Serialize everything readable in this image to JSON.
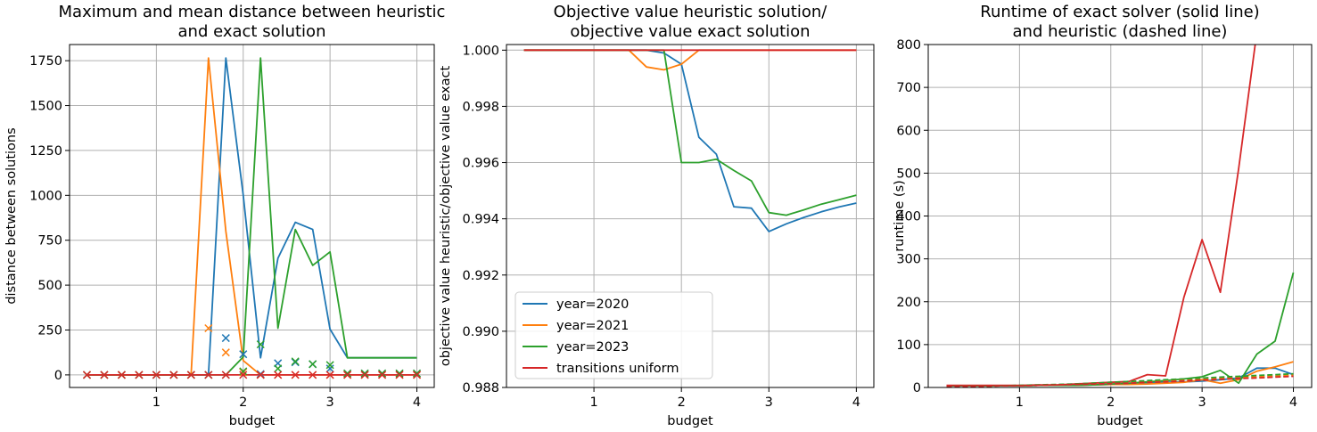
{
  "colors": {
    "year=2020": "#1f77b4",
    "year=2021": "#ff7f0e",
    "year=2023": "#2ca02c",
    "transitions uniform": "#d62728"
  },
  "chart_data": [
    {
      "type": "line",
      "title": [
        "Maximum and mean distance between heuristic",
        "and exact solution"
      ],
      "xlabel": "budget",
      "ylabel": "distance between solutions",
      "xlim": [
        0.0,
        4.2
      ],
      "ylim": [
        -70,
        1840
      ],
      "xticks": [
        1,
        2,
        3,
        4
      ],
      "yticks": [
        0,
        250,
        500,
        750,
        1000,
        1250,
        1500,
        1750
      ],
      "grid": true,
      "x": [
        0.2,
        0.4,
        0.6,
        0.8,
        1.0,
        1.2,
        1.4,
        1.6,
        1.8,
        2.0,
        2.2,
        2.4,
        2.6,
        2.8,
        3.0,
        3.2,
        3.4,
        3.6,
        3.8,
        4.0
      ],
      "series": [
        {
          "name": "year=2020",
          "style": "line",
          "values": [
            0,
            0,
            0,
            0,
            0,
            0,
            0,
            0,
            1765,
            1000,
            95,
            650,
            850,
            810,
            255,
            95,
            95,
            95,
            95,
            95
          ]
        },
        {
          "name": "year=2021",
          "style": "line",
          "values": [
            0,
            0,
            0,
            0,
            0,
            0,
            0,
            1765,
            800,
            80,
            0,
            0,
            0,
            0,
            0,
            0,
            0,
            0,
            0,
            0
          ]
        },
        {
          "name": "year=2023",
          "style": "line",
          "values": [
            0,
            0,
            0,
            0,
            0,
            0,
            0,
            0,
            0,
            100,
            1765,
            260,
            810,
            610,
            685,
            95,
            95,
            95,
            95,
            95
          ]
        },
        {
          "name": "transitions uniform",
          "style": "line",
          "values": [
            0,
            0,
            0,
            0,
            0,
            0,
            0,
            0,
            0,
            0,
            0,
            0,
            0,
            0,
            0,
            0,
            0,
            0,
            0,
            0
          ]
        },
        {
          "name": "year=2020",
          "style": "marker",
          "values": [
            0,
            0,
            0,
            0,
            0,
            0,
            0,
            0,
            205,
            115,
            5,
            65,
            70,
            60,
            35,
            8,
            8,
            8,
            8,
            8
          ]
        },
        {
          "name": "year=2021",
          "style": "marker",
          "values": [
            0,
            0,
            0,
            0,
            0,
            0,
            0,
            260,
            125,
            15,
            0,
            0,
            0,
            0,
            0,
            0,
            0,
            0,
            0,
            0
          ]
        },
        {
          "name": "year=2023",
          "style": "marker",
          "values": [
            0,
            0,
            0,
            0,
            0,
            0,
            0,
            0,
            0,
            20,
            170,
            35,
            75,
            60,
            55,
            8,
            8,
            8,
            8,
            8
          ]
        },
        {
          "name": "transitions uniform",
          "style": "marker",
          "values": [
            0,
            0,
            0,
            0,
            0,
            0,
            0,
            0,
            0,
            0,
            0,
            0,
            0,
            0,
            0,
            0,
            0,
            0,
            0,
            0
          ]
        }
      ]
    },
    {
      "type": "line",
      "title": [
        "Objective value heuristic solution/",
        "objective value exact solution"
      ],
      "xlabel": "budget",
      "ylabel": "objective value heuristic/objective value exact",
      "xlim": [
        0.0,
        4.2
      ],
      "ylim": [
        0.988,
        1.0002
      ],
      "xticks": [
        1,
        2,
        3,
        4
      ],
      "yticks": [
        0.988,
        0.99,
        0.992,
        0.994,
        0.996,
        0.998,
        1.0
      ],
      "ytick_labels": [
        "0.988",
        "0.990",
        "0.992",
        "0.994",
        "0.996",
        "0.998",
        "1.000"
      ],
      "grid": true,
      "legend": {
        "position": "lower-left",
        "entries": [
          "year=2020",
          "year=2021",
          "year=2023",
          "transitions uniform"
        ]
      },
      "x": [
        0.2,
        0.4,
        0.6,
        0.8,
        1.0,
        1.2,
        1.4,
        1.6,
        1.8,
        2.0,
        2.2,
        2.4,
        2.6,
        2.8,
        3.0,
        3.2,
        3.4,
        3.6,
        3.8,
        4.0
      ],
      "series": [
        {
          "name": "year=2020",
          "style": "line",
          "values": [
            1,
            1,
            1,
            1,
            1,
            1,
            1,
            1,
            0.9999,
            0.9995,
            0.9969,
            0.9963,
            0.99443,
            0.99438,
            0.99355,
            0.99382,
            0.99405,
            0.99425,
            0.99442,
            0.99456
          ]
        },
        {
          "name": "year=2021",
          "style": "line",
          "values": [
            1,
            1,
            1,
            1,
            1,
            1,
            1,
            0.9994,
            0.9993,
            0.9995,
            1,
            1,
            1,
            1,
            1,
            1,
            1,
            1,
            1,
            1
          ]
        },
        {
          "name": "year=2023",
          "style": "line",
          "values": [
            1,
            1,
            1,
            1,
            1,
            1,
            1,
            1,
            1,
            0.996,
            0.996,
            0.99612,
            0.99572,
            0.99535,
            0.99422,
            0.99413,
            0.99432,
            0.99452,
            0.99468,
            0.99484
          ]
        },
        {
          "name": "transitions uniform",
          "style": "line",
          "values": [
            1,
            1,
            1,
            1,
            1,
            1,
            1,
            1,
            1,
            1,
            1,
            1,
            1,
            1,
            1,
            1,
            1,
            1,
            1,
            1
          ]
        }
      ]
    },
    {
      "type": "line",
      "title": [
        "Runtime of exact solver (solid line)",
        "and heuristic (dashed line)"
      ],
      "xlabel": "budget",
      "ylabel": "runtime (s)",
      "xlim": [
        0.0,
        4.2
      ],
      "ylim": [
        0,
        800
      ],
      "xticks": [
        1,
        2,
        3,
        4
      ],
      "yticks": [
        0,
        100,
        200,
        300,
        400,
        500,
        600,
        700,
        800
      ],
      "grid": true,
      "x": [
        0.2,
        0.4,
        0.6,
        0.8,
        1.0,
        1.2,
        1.4,
        1.6,
        1.8,
        2.0,
        2.2,
        2.4,
        2.6,
        2.8,
        3.0,
        3.2,
        3.4,
        3.6,
        3.8,
        4.0
      ],
      "series": [
        {
          "name": "year=2020",
          "style": "line",
          "values": [
            4,
            4,
            4,
            4,
            4,
            5,
            5,
            5,
            6,
            7,
            8,
            10,
            12,
            13,
            15,
            18,
            22,
            45,
            45,
            30
          ]
        },
        {
          "name": "year=2021",
          "style": "line",
          "values": [
            4,
            4,
            4,
            4,
            4,
            5,
            5,
            5,
            6,
            7,
            7,
            8,
            10,
            12,
            18,
            10,
            18,
            38,
            48,
            60
          ]
        },
        {
          "name": "year=2023",
          "style": "line",
          "values": [
            4,
            4,
            4,
            4,
            4,
            5,
            5,
            5,
            6,
            8,
            10,
            13,
            16,
            20,
            25,
            40,
            10,
            78,
            108,
            268
          ]
        },
        {
          "name": "transitions uniform",
          "style": "line",
          "values": [
            5,
            5,
            5,
            5,
            5,
            6,
            6,
            8,
            10,
            12,
            14,
            30,
            27,
            210,
            345,
            222,
            510,
            830,
            830,
            830
          ]
        },
        {
          "name": "year=2020",
          "style": "dashed",
          "values": [
            2,
            3,
            3,
            4,
            4,
            5,
            6,
            7,
            8,
            9,
            10,
            12,
            14,
            15,
            17,
            19,
            21,
            23,
            25,
            27
          ]
        },
        {
          "name": "year=2021",
          "style": "dashed",
          "values": [
            2,
            3,
            3,
            4,
            4,
            5,
            6,
            7,
            8,
            10,
            11,
            13,
            15,
            17,
            19,
            21,
            23,
            25,
            27,
            29
          ]
        },
        {
          "name": "year=2023",
          "style": "dashed",
          "values": [
            2,
            3,
            3,
            4,
            5,
            6,
            7,
            8,
            10,
            12,
            14,
            16,
            18,
            20,
            22,
            24,
            26,
            28,
            30,
            32
          ]
        },
        {
          "name": "transitions uniform",
          "style": "dashed",
          "values": [
            2,
            3,
            3,
            4,
            4,
            5,
            6,
            7,
            8,
            9,
            10,
            12,
            13,
            15,
            17,
            19,
            21,
            22,
            24,
            26
          ]
        }
      ]
    }
  ]
}
